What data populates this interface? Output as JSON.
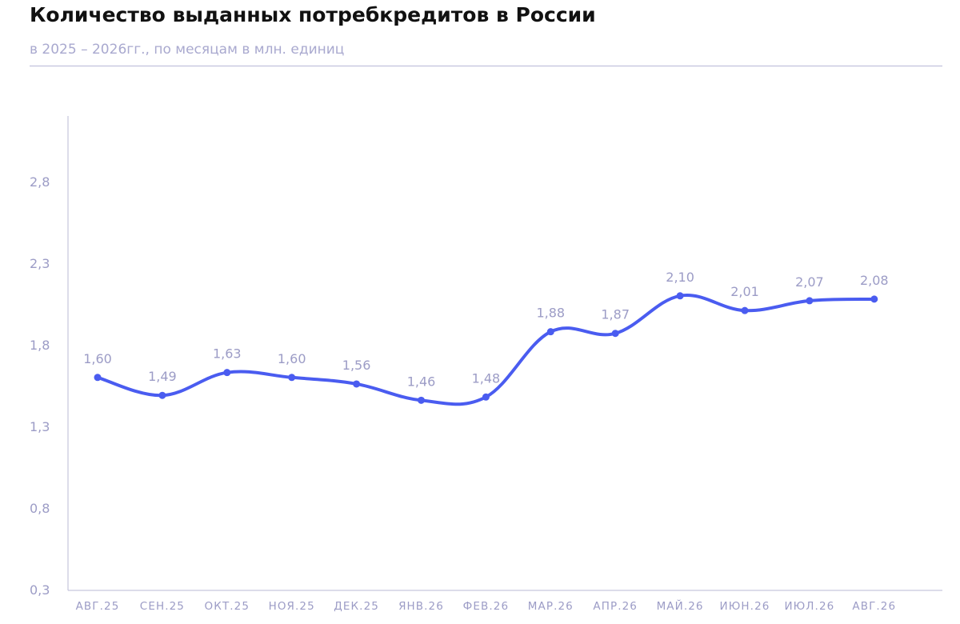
{
  "header": {
    "title": "Количество выданных потребкредитов в России",
    "subtitle": "в 2025 – 2026гг., по месяцам в млн. единиц"
  },
  "colors": {
    "line": "#4a5cf0",
    "axis": "#b8b8d6",
    "label": "#9c9cc6"
  },
  "chart_data": {
    "type": "line",
    "title": "Количество выданных потребкредитов в России",
    "subtitle": "в 2025 – 2026гг., по месяцам в млн. единиц",
    "xlabel": "",
    "ylabel": "",
    "categories": [
      "АВГ.25",
      "СЕН.25",
      "ОКТ.25",
      "НОЯ.25",
      "ДЕК.25",
      "ЯНВ.26",
      "ФЕВ.26",
      "МАР.26",
      "АПР.26",
      "МАЙ.26",
      "ИЮН.26",
      "ИЮЛ.26",
      "АВГ.26"
    ],
    "series": [
      {
        "values": [
          1.6,
          1.49,
          1.63,
          1.6,
          1.56,
          1.46,
          1.48,
          1.88,
          1.87,
          2.1,
          2.01,
          2.07,
          2.08
        ],
        "labels": [
          "1,60",
          "1,49",
          "1,63",
          "1,60",
          "1,56",
          "1,46",
          "1,48",
          "1,88",
          "1,87",
          "2,10",
          "2,01",
          "2,07",
          "2,08"
        ]
      }
    ],
    "y_ticks": [
      0.3,
      0.8,
      1.3,
      1.8,
      2.3,
      2.8
    ],
    "y_tick_labels": [
      "0,3",
      "0,8",
      "1,3",
      "1,8",
      "2,3",
      "2,8"
    ],
    "ylim": [
      0.3,
      3.2
    ],
    "grid": false,
    "legend": "none",
    "smooth": true
  }
}
